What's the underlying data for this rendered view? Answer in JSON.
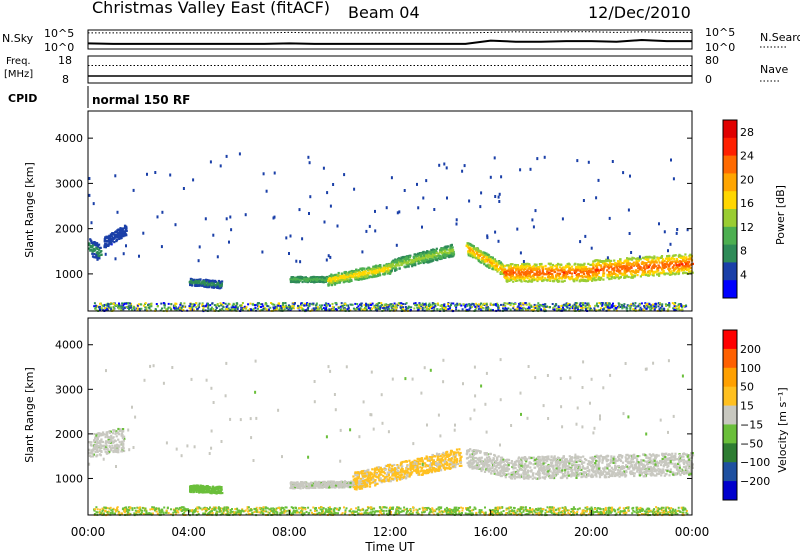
{
  "header": {
    "title": "Christmas Valley East (fitACF)",
    "beam": "Beam 04",
    "date": "12/Dec/2010"
  },
  "chart_data": [
    {
      "type": "line",
      "name": "nsky_nsearch",
      "left_label": "N.Sky",
      "right_label": "N.Search",
      "left_ticks": [
        "10^5",
        "10^0"
      ],
      "right_ticks": [
        "10^5",
        "10^0"
      ],
      "x_hours": [
        0,
        1,
        2,
        3,
        4,
        5,
        6,
        7,
        8,
        9,
        10,
        11,
        12,
        13,
        14,
        15,
        16,
        17,
        18,
        19,
        20,
        21,
        22,
        23,
        24
      ],
      "nsky_level": [
        0.3,
        0.2,
        0.2,
        0.2,
        0.2,
        0.2,
        0.2,
        0.2,
        0.3,
        0.2,
        0.2,
        0.2,
        0.2,
        0.2,
        0.2,
        0.2,
        0.8,
        0.6,
        0.6,
        0.7,
        0.7,
        0.6,
        0.9,
        0.7,
        0.7
      ],
      "nsearch_level": [
        2.2,
        2.2,
        2.2,
        2.2,
        2.2,
        2.2,
        2.2,
        2.2,
        2.3,
        2.2,
        2.2,
        2.2,
        2.2,
        2.2,
        2.2,
        2.2,
        2.3,
        2.4,
        2.3,
        2.4,
        2.4,
        2.3,
        2.4,
        2.3,
        2.3
      ]
    },
    {
      "type": "line",
      "name": "freq_nave",
      "left_label_top": "Freq.",
      "left_label_unit": "[MHz]",
      "right_label": "Nave",
      "left_ticks": [
        "18",
        "8"
      ],
      "right_ticks": [
        "80",
        "0"
      ],
      "freq_mhz": 10.5,
      "nave": 55
    },
    {
      "type": "table",
      "name": "cpid",
      "label": "CPID",
      "program": "normal 150 RF"
    },
    {
      "type": "heatmap",
      "name": "power",
      "xlabel": "",
      "ylabel": "Slant Range [km]",
      "xlim": [
        0,
        24
      ],
      "ylim": [
        180,
        4600
      ],
      "y_ticks": [
        1000,
        2000,
        3000,
        4000
      ],
      "colorbar_label": "Power [dB]",
      "colorbar_ticks": [
        "4",
        "8",
        "12",
        "16",
        "20",
        "24",
        "28"
      ],
      "colorbar_range": [
        0,
        30
      ],
      "colors": [
        "#0000ff",
        "#1a3fa8",
        "#2e8b57",
        "#4caf50",
        "#9acd32",
        "#ffd700",
        "#ffa500",
        "#ff6a00",
        "#ff2000",
        "#e00000"
      ]
    },
    {
      "type": "heatmap",
      "name": "velocity",
      "xlabel": "Time UT",
      "ylabel": "Slant Range [km]",
      "xlim": [
        0,
        24
      ],
      "ylim": [
        180,
        4600
      ],
      "y_ticks": [
        1000,
        2000,
        3000,
        4000
      ],
      "x_ticks": [
        "00:00",
        "04:00",
        "08:00",
        "12:00",
        "16:00",
        "20:00",
        "00:00"
      ],
      "colorbar_label": "Velocity [m s⁻¹]",
      "colorbar_ticks": [
        "200",
        "100",
        "50",
        "15",
        "−15",
        "−50",
        "−100",
        "−200"
      ],
      "colors": [
        "#0000cd",
        "#1e50a0",
        "#2e7d32",
        "#6abf3a",
        "#c8c8c0",
        "#ffc020",
        "#ffa000",
        "#ff6000",
        "#ff0000"
      ]
    }
  ]
}
